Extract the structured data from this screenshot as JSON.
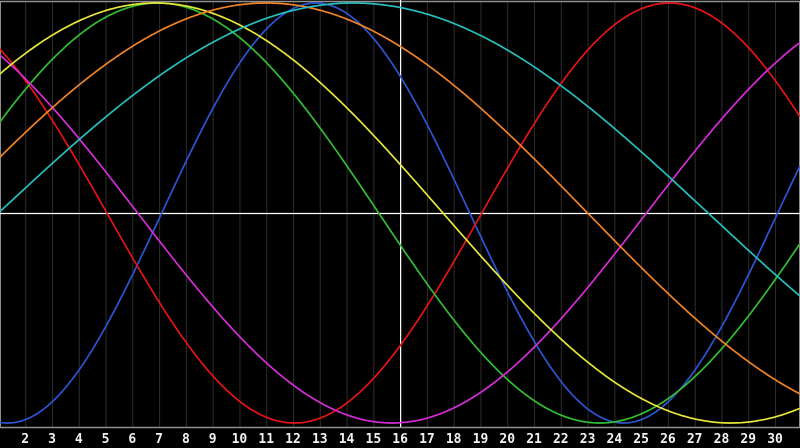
{
  "colors": {
    "background": "#000000",
    "gridline": "#2d2d2d",
    "border": "#8f8f8f",
    "axis_line": "#8f8f8f",
    "crosshair": "#ffffff",
    "label_text": "#f2f2f2"
  },
  "chart_data": {
    "type": "line",
    "description": "Seven sine waves of increasing period (rainbow colors) on a black background with a white crosshair cursor",
    "function": "y = sin(2*PI*(x - phase_zero_up)/period)",
    "x_axis": {
      "range": [
        1.06,
        30.93
      ],
      "tick_values": [
        2,
        3,
        4,
        5,
        6,
        7,
        8,
        9,
        10,
        11,
        12,
        13,
        14,
        15,
        16,
        17,
        18,
        19,
        20,
        21,
        22,
        23,
        24,
        25,
        26,
        27,
        28,
        29,
        30
      ],
      "tick_labels": [
        "2",
        "3",
        "4",
        "5",
        "6",
        "7",
        "8",
        "9",
        "10",
        "11",
        "12",
        "13",
        "14",
        "15",
        "16",
        "17",
        "18",
        "19",
        "20",
        "21",
        "22",
        "23",
        "24",
        "25",
        "26",
        "27",
        "28",
        "29",
        "30"
      ],
      "gridlines": true
    },
    "y_axis": {
      "range": [
        -1.02,
        1.02
      ],
      "tick_labels": [],
      "gridlines": false
    },
    "crosshair": {
      "x": 16,
      "y": 0
    },
    "legend": "none",
    "series": [
      {
        "name": "wave-blue",
        "color": "#2d55d2",
        "period": 23,
        "phase_zero_up": 7.1,
        "amplitude": 1,
        "max_at": 12.85,
        "min_at": 1.35
      },
      {
        "name": "wave-red",
        "color": "#e61414",
        "period": 28,
        "phase_zero_up": 19.05,
        "amplitude": 1,
        "max_at": 26.05,
        "min_at": 12.05
      },
      {
        "name": "wave-green",
        "color": "#32be32",
        "period": 33,
        "phase_zero_up": -1.3,
        "amplitude": 1,
        "max_at": 6.95,
        "min_at": 23.45
      },
      {
        "name": "wave-magenta",
        "color": "#d72dd7",
        "period": 38,
        "phase_zero_up": 25.2,
        "amplitude": 1,
        "max_at": 34.7,
        "min_at": 15.7
      },
      {
        "name": "wave-yellow",
        "color": "#e6e63c",
        "period": 43,
        "phase_zero_up": -3.9,
        "amplitude": 1,
        "max_at": 6.85,
        "min_at": 28.35
      },
      {
        "name": "wave-orange",
        "color": "#f08228",
        "period": 48,
        "phase_zero_up": -1.0,
        "amplitude": 1,
        "max_at": 11.0,
        "min_at": 35.0
      },
      {
        "name": "wave-cyan",
        "color": "#28bebe",
        "period": 53,
        "phase_zero_up": 1.0,
        "amplitude": 1,
        "max_at": 14.25,
        "min_at": 40.75
      }
    ]
  }
}
